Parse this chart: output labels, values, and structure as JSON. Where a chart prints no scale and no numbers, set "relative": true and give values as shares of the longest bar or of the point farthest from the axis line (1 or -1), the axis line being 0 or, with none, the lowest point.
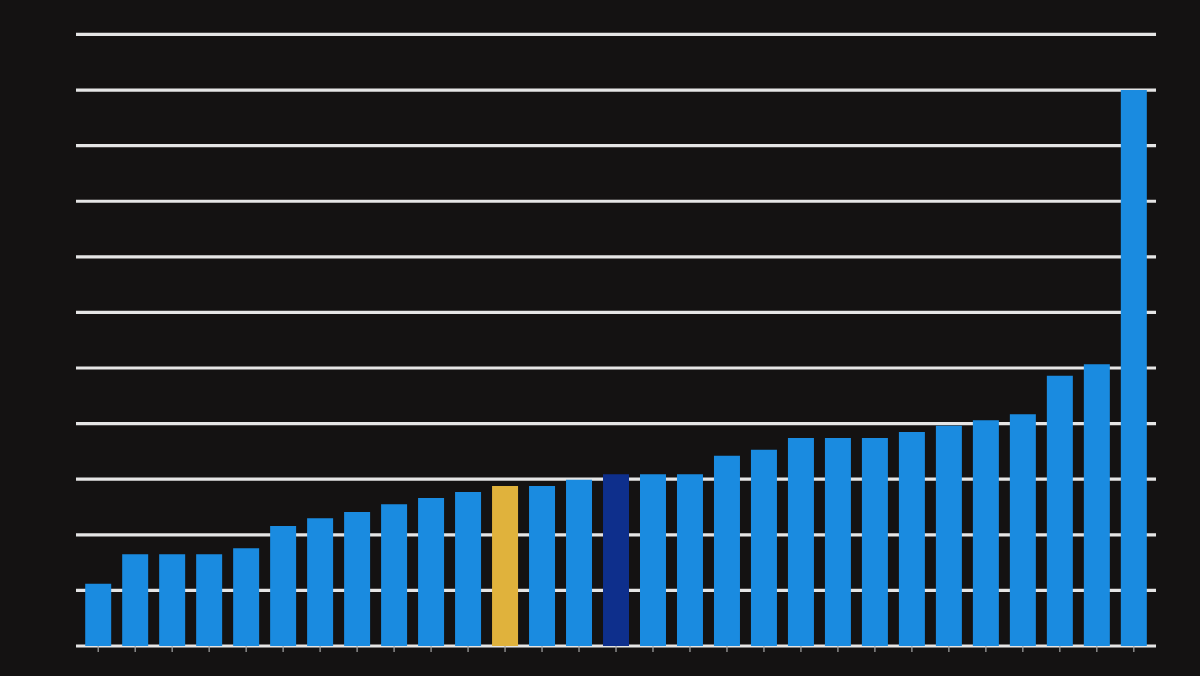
{
  "chart_data": {
    "type": "bar",
    "relative": true,
    "grid": "y",
    "categories": [
      null,
      null,
      null,
      null,
      null,
      null,
      null,
      null,
      null,
      null,
      null,
      null,
      null,
      null,
      null,
      null,
      null,
      null,
      null,
      null,
      null,
      null,
      null,
      null,
      null,
      null,
      null,
      null,
      null
    ],
    "values": [
      0.112,
      0.165,
      0.165,
      0.165,
      0.176,
      0.216,
      0.23,
      0.241,
      0.255,
      0.266,
      0.277,
      0.288,
      0.288,
      0.299,
      0.309,
      0.309,
      0.309,
      0.342,
      0.353,
      0.374,
      0.374,
      0.374,
      0.385,
      0.396,
      0.406,
      0.417,
      0.486,
      0.507,
      1
    ],
    "colors": [
      "#1a8be0",
      "#1a8be0",
      "#1a8be0",
      "#1a8be0",
      "#1a8be0",
      "#1a8be0",
      "#1a8be0",
      "#1a8be0",
      "#1a8be0",
      "#1a8be0",
      "#1a8be0",
      "#e0b23c",
      "#1a8be0",
      "#1a8be0",
      "#0e2f8c",
      "#1a8be0",
      "#1a8be0",
      "#1a8be0",
      "#1a8be0",
      "#1a8be0",
      "#1a8be0",
      "#1a8be0",
      "#1a8be0",
      "#1a8be0",
      "#1a8be0",
      "#1a8be0",
      "#1a8be0",
      "#1a8be0",
      "#1a8be0"
    ]
  }
}
